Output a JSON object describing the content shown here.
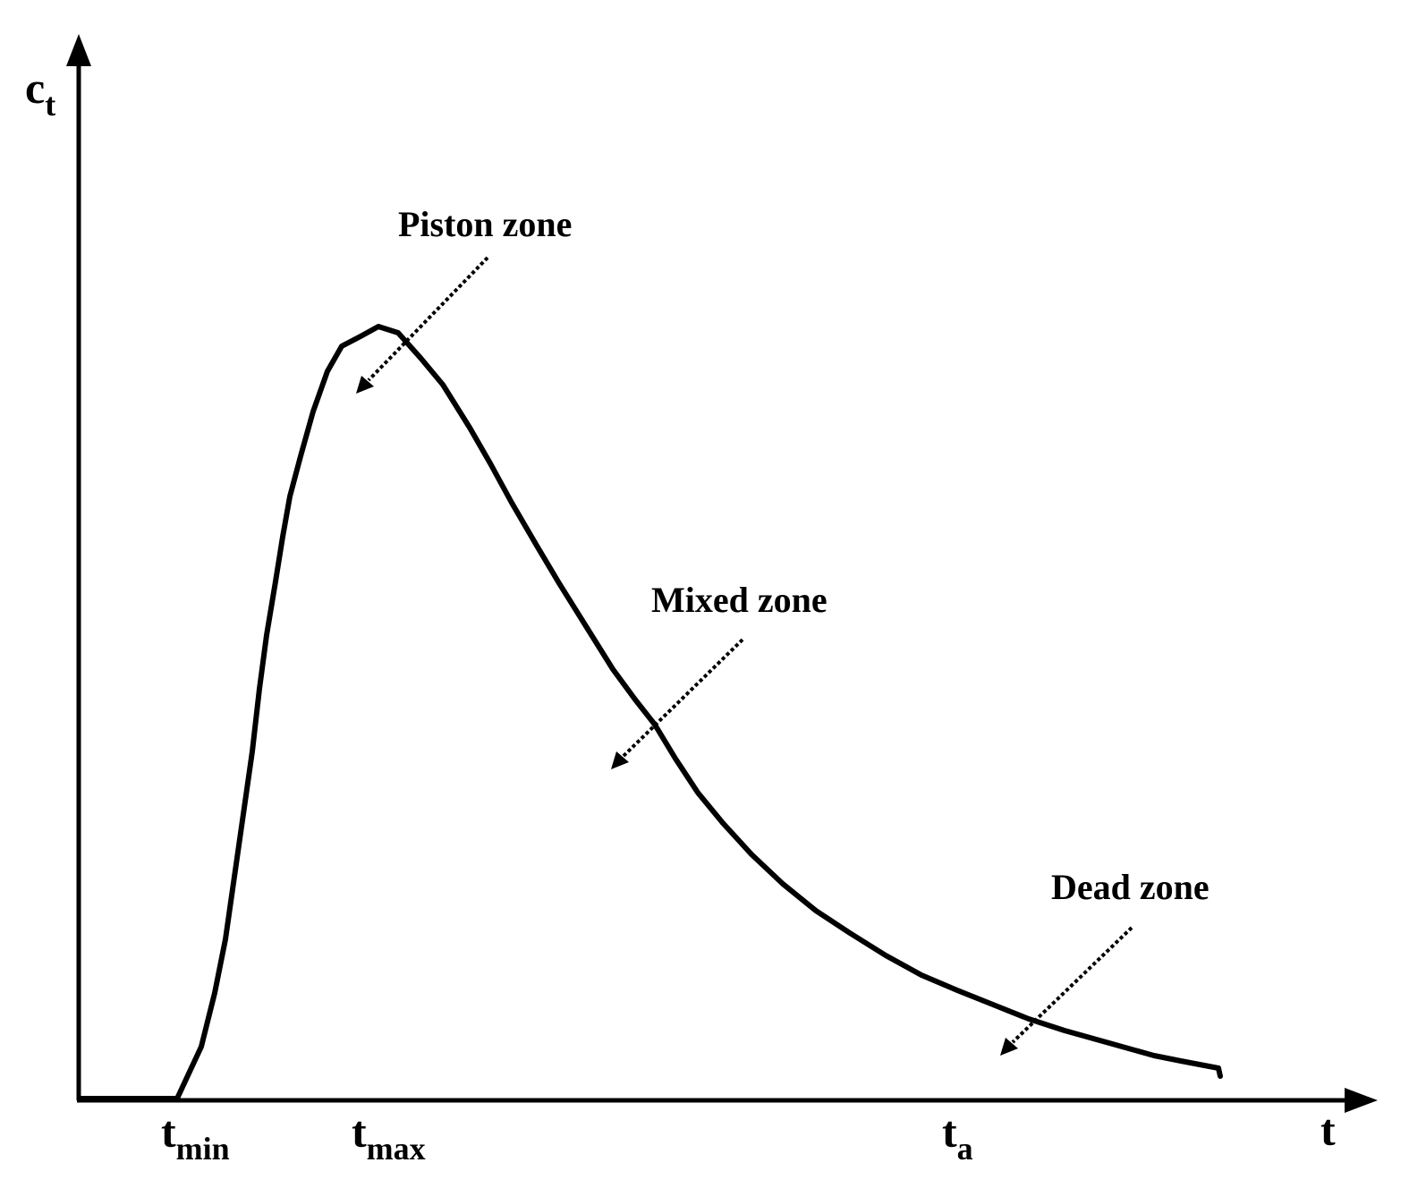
{
  "diagram": {
    "y_axis": {
      "main": "c",
      "sub": "t"
    },
    "x_axis": {
      "main": "t"
    },
    "ticks": [
      {
        "main": "t",
        "sub": "min"
      },
      {
        "main": "t",
        "sub": "max"
      },
      {
        "main": "t",
        "sub": "a"
      }
    ],
    "zones": [
      {
        "label": "Piston zone"
      },
      {
        "label": "Mixed zone"
      },
      {
        "label": "Dead zone"
      }
    ],
    "colors": {
      "ink": "#000000",
      "background": "#ffffff"
    }
  }
}
